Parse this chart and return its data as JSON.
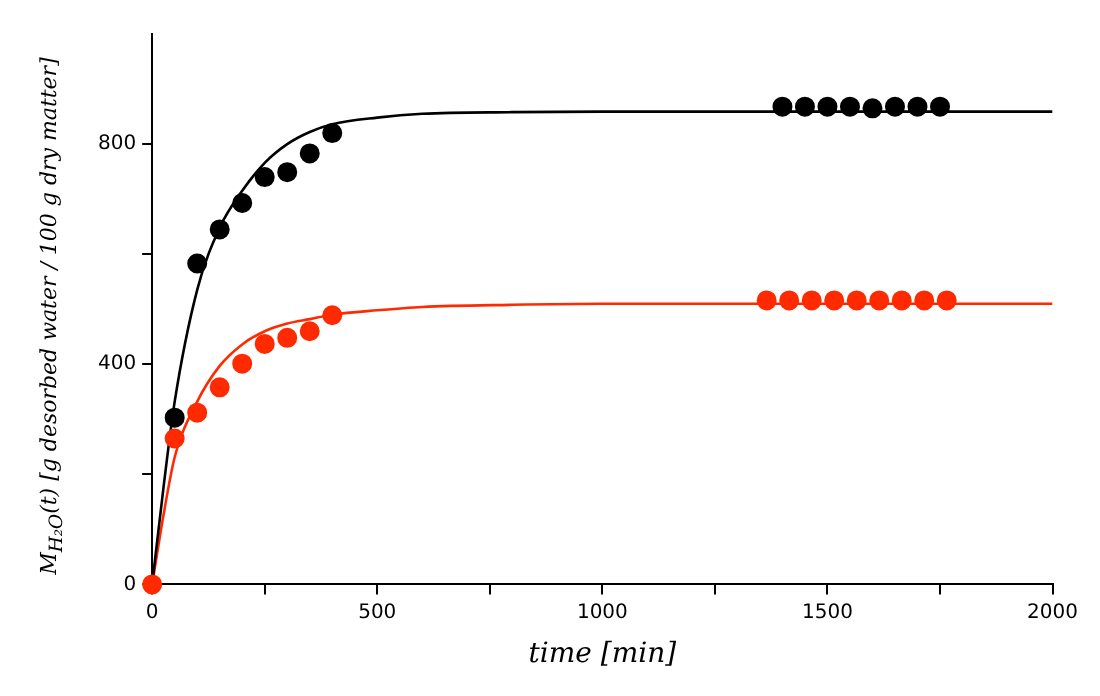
{
  "chart_data": {
    "type": "scatter",
    "xlabel": "time [min]",
    "ylabel": "M$_{H₂O}$(t) [g desorbed water / 100 g dry matter]",
    "xlim": [
      0,
      2000
    ],
    "ylim": [
      0,
      1000
    ],
    "xticks": [
      0,
      {
        "value": 250,
        "label": null
      },
      500,
      {
        "value": 750,
        "label": null
      },
      1000,
      {
        "value": 1250,
        "label": null
      },
      1500,
      {
        "value": 1750,
        "label": null
      },
      2000
    ],
    "yticks": [
      0,
      {
        "value": 200,
        "label": null
      },
      400,
      {
        "value": 600,
        "label": null
      },
      800
    ],
    "grid": false,
    "legend": false,
    "marker": "circle",
    "series": [
      {
        "type": "line",
        "color": "#000000",
        "marker": "none",
        "x": [
          0,
          25,
          50,
          100,
          150,
          200,
          250,
          300,
          350,
          400,
          500,
          600,
          800,
          1000,
          2000
        ],
        "values": [
          0,
          175,
          332,
          535,
          648,
          715,
          766,
          800,
          822,
          836,
          848,
          855,
          858,
          859,
          859
        ]
      },
      {
        "type": "line",
        "color": "#ff2a00",
        "marker": "none",
        "x": [
          0,
          25,
          50,
          100,
          150,
          200,
          250,
          300,
          350,
          400,
          500,
          600,
          800,
          1000,
          2000
        ],
        "values": [
          0,
          125,
          231,
          332,
          397,
          436,
          460,
          474,
          482,
          490,
          498,
          504,
          508,
          510,
          510
        ]
      },
      {
        "type": "scatter",
        "color": "#000000",
        "x": [
          50,
          100,
          150,
          200,
          250,
          300,
          350,
          400,
          1400,
          1450,
          1500,
          1550,
          1600,
          1650,
          1700,
          1750
        ],
        "values": [
          303,
          583,
          645,
          693,
          740,
          749,
          783,
          820,
          868,
          868,
          868,
          868,
          865,
          868,
          868,
          868
        ]
      },
      {
        "type": "scatter",
        "color": "#ff2a00",
        "x": [
          0,
          50,
          100,
          150,
          200,
          250,
          300,
          350,
          400,
          1365,
          1415,
          1465,
          1515,
          1565,
          1615,
          1665,
          1715,
          1765
        ],
        "values": [
          0,
          265,
          312,
          358,
          401,
          437,
          448,
          460,
          489,
          516,
          516,
          516,
          516,
          516,
          516,
          516,
          516,
          516
        ]
      }
    ]
  }
}
